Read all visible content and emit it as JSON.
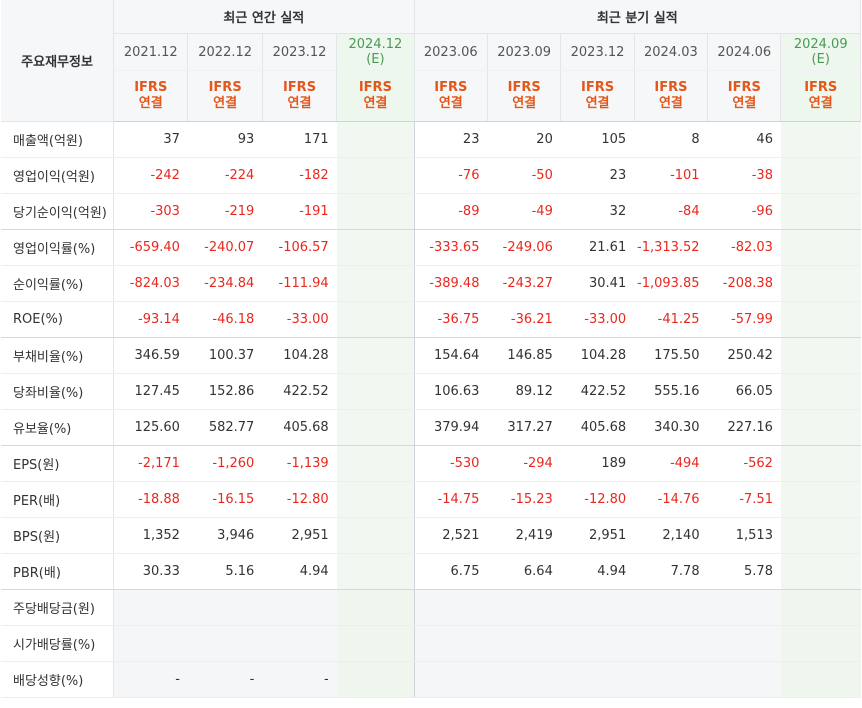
{
  "header": {
    "row_label": "주요재무정보",
    "annual_title": "최근 연간 실적",
    "quarter_title": "최근 분기 실적",
    "annual_periods": [
      "2021.12",
      "2022.12",
      "2023.12"
    ],
    "annual_estimate": {
      "period": "2024.12",
      "tag": "(E)"
    },
    "quarter_periods": [
      "2023.06",
      "2023.09",
      "2023.12",
      "2024.03",
      "2024.06"
    ],
    "quarter_estimate": {
      "period": "2024.09",
      "tag": "(E)"
    },
    "basis_top": "IFRS",
    "basis_bottom": "연결"
  },
  "rows": [
    {
      "label": "매출액(억원)",
      "annual": [
        "37",
        "93",
        "171"
      ],
      "quarter": [
        "23",
        "20",
        "105",
        "8",
        "46"
      ]
    },
    {
      "label": "영업이익(억원)",
      "annual": [
        "-242",
        "-224",
        "-182"
      ],
      "quarter": [
        "-76",
        "-50",
        "23",
        "-101",
        "-38"
      ]
    },
    {
      "label": "당기순이익(억원)",
      "annual": [
        "-303",
        "-219",
        "-191"
      ],
      "quarter": [
        "-89",
        "-49",
        "32",
        "-84",
        "-96"
      ]
    },
    {
      "label": "영업이익률(%)",
      "annual": [
        "-659.40",
        "-240.07",
        "-106.57"
      ],
      "quarter": [
        "-333.65",
        "-249.06",
        "21.61",
        "-1,313.52",
        "-82.03"
      ]
    },
    {
      "label": "순이익률(%)",
      "annual": [
        "-824.03",
        "-234.84",
        "-111.94"
      ],
      "quarter": [
        "-389.48",
        "-243.27",
        "30.41",
        "-1,093.85",
        "-208.38"
      ]
    },
    {
      "label": "ROE(%)",
      "annual": [
        "-93.14",
        "-46.18",
        "-33.00"
      ],
      "quarter": [
        "-36.75",
        "-36.21",
        "-33.00",
        "-41.25",
        "-57.99"
      ]
    },
    {
      "label": "부채비율(%)",
      "annual": [
        "346.59",
        "100.37",
        "104.28"
      ],
      "quarter": [
        "154.64",
        "146.85",
        "104.28",
        "175.50",
        "250.42"
      ]
    },
    {
      "label": "당좌비율(%)",
      "annual": [
        "127.45",
        "152.86",
        "422.52"
      ],
      "quarter": [
        "106.63",
        "89.12",
        "422.52",
        "555.16",
        "66.05"
      ]
    },
    {
      "label": "유보율(%)",
      "annual": [
        "125.60",
        "582.77",
        "405.68"
      ],
      "quarter": [
        "379.94",
        "317.27",
        "405.68",
        "340.30",
        "227.16"
      ]
    },
    {
      "label": "EPS(원)",
      "annual": [
        "-2,171",
        "-1,260",
        "-1,139"
      ],
      "quarter": [
        "-530",
        "-294",
        "189",
        "-494",
        "-562"
      ]
    },
    {
      "label": "PER(배)",
      "annual": [
        "-18.88",
        "-16.15",
        "-12.80"
      ],
      "quarter": [
        "-14.75",
        "-15.23",
        "-12.80",
        "-14.76",
        "-7.51"
      ]
    },
    {
      "label": "BPS(원)",
      "annual": [
        "1,352",
        "3,946",
        "2,951"
      ],
      "quarter": [
        "2,521",
        "2,419",
        "2,951",
        "2,140",
        "1,513"
      ]
    },
    {
      "label": "PBR(배)",
      "annual": [
        "30.33",
        "5.16",
        "4.94"
      ],
      "quarter": [
        "6.75",
        "6.64",
        "4.94",
        "7.78",
        "5.78"
      ]
    },
    {
      "label": "주당배당금(원)",
      "annual": [
        "",
        "",
        ""
      ],
      "quarter": [
        "",
        "",
        "",
        "",
        ""
      ]
    },
    {
      "label": "시가배당률(%)",
      "annual": [
        "",
        "",
        ""
      ],
      "quarter": [
        "",
        "",
        "",
        "",
        ""
      ]
    },
    {
      "label": "배당성향(%)",
      "annual": [
        "-",
        "-",
        "-"
      ],
      "quarter": [
        "",
        "",
        "",
        "",
        ""
      ]
    }
  ],
  "colors": {
    "negative": "#e8281f",
    "basis": "#e3571b",
    "estimate_bg": "#f1f8f1",
    "estimate_text": "#4a9a56"
  }
}
